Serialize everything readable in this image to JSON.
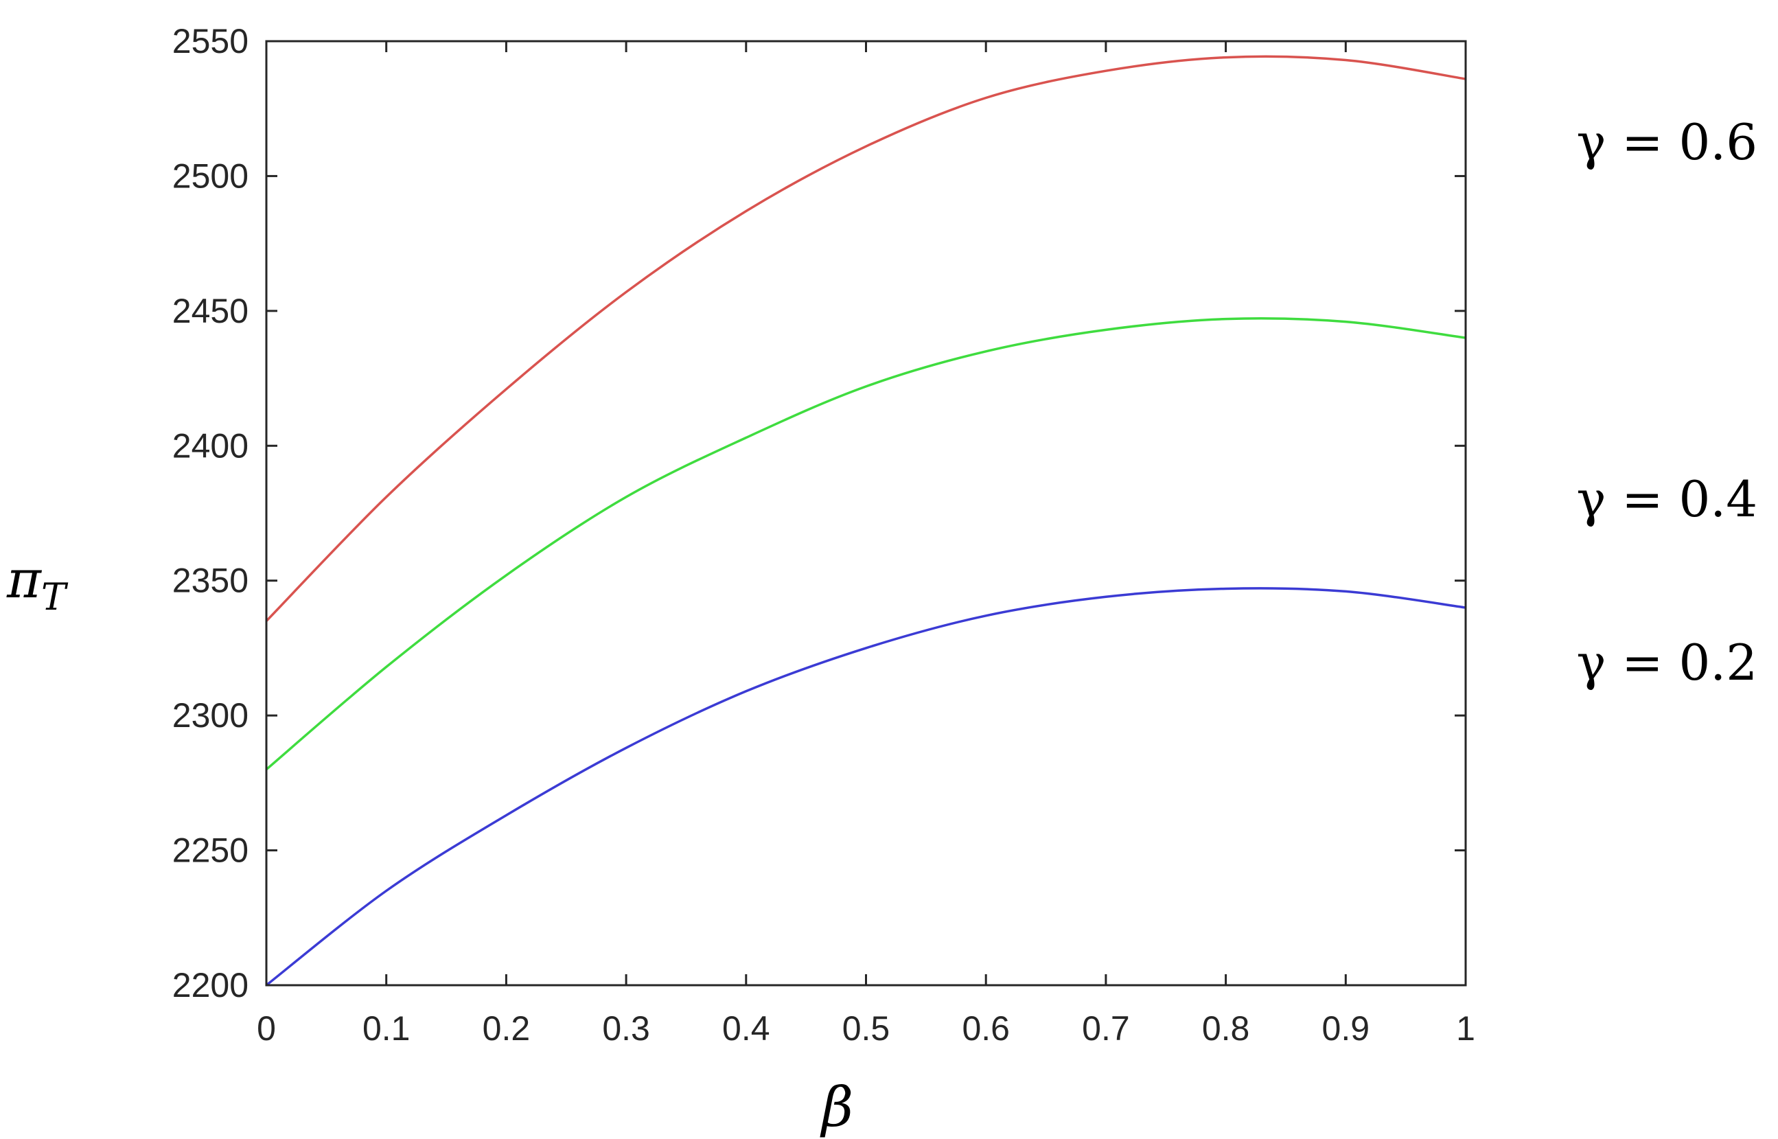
{
  "chart_data": {
    "type": "line",
    "title": "",
    "xlabel": "β",
    "ylabel": "π",
    "ylabel_subscript": "T",
    "xlim": [
      0,
      1
    ],
    "ylim": [
      2200,
      2550
    ],
    "x_ticks": [
      0,
      0.1,
      0.2,
      0.3,
      0.4,
      0.5,
      0.6,
      0.7,
      0.8,
      0.9,
      1
    ],
    "x_tick_labels": [
      "0",
      "0.1",
      "0.2",
      "0.3",
      "0.4",
      "0.5",
      "0.6",
      "0.7",
      "0.8",
      "0.9",
      "1"
    ],
    "y_ticks": [
      2200,
      2250,
      2300,
      2350,
      2400,
      2450,
      2500,
      2550
    ],
    "y_tick_labels": [
      "2200",
      "2250",
      "2300",
      "2350",
      "2400",
      "2450",
      "2500",
      "2550"
    ],
    "grid": false,
    "legend": "none",
    "x": [
      0,
      0.1,
      0.2,
      0.3,
      0.4,
      0.5,
      0.6,
      0.7,
      0.8,
      0.9,
      1
    ],
    "series": [
      {
        "annotation": "γ = 0.6",
        "color": "#d9534f",
        "values": [
          2335,
          2381,
          2421,
          2457,
          2487,
          2511,
          2529,
          2539,
          2544,
          2543,
          2536
        ]
      },
      {
        "annotation": "γ = 0.4",
        "color": "#3fdc3f",
        "values": [
          2280,
          2318,
          2352,
          2381,
          2403,
          2422,
          2435,
          2443,
          2447,
          2446,
          2440
        ]
      },
      {
        "annotation": "γ = 0.2",
        "color": "#3b3bd4",
        "values": [
          2200,
          2235,
          2263,
          2288,
          2309,
          2325,
          2337,
          2344,
          2347,
          2346,
          2340
        ]
      }
    ]
  }
}
